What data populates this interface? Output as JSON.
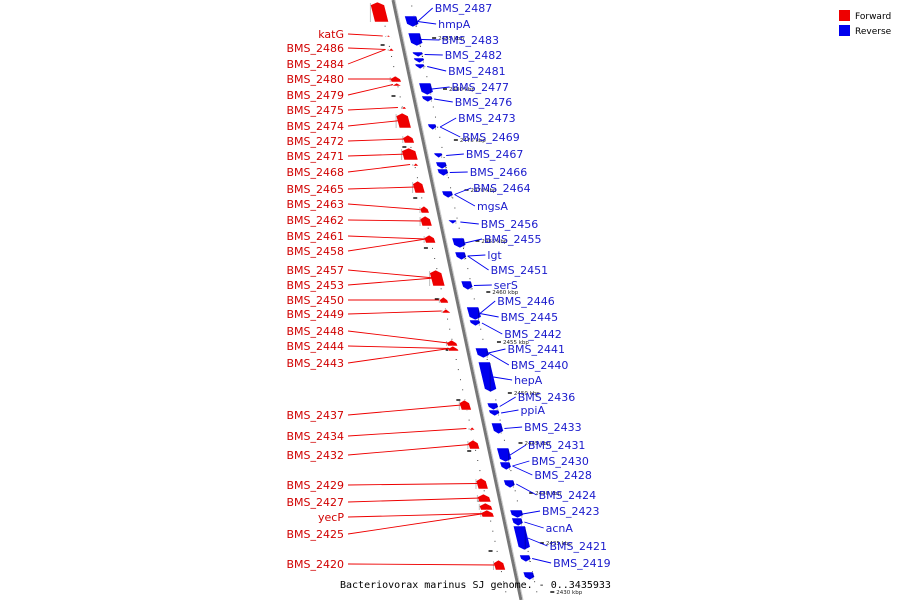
{
  "caption": "Bacteriovorax marinus SJ genome. - 0..3435933",
  "legend": [
    {
      "label": "Forward",
      "color": "#ee0000"
    },
    {
      "label": "Reverse",
      "color": "#0000ee"
    }
  ],
  "colors": {
    "forward": "#ee0000",
    "reverse": "#0000ee",
    "axis": "#8a8a8a"
  },
  "ticks": [
    "2485 kbp",
    "2480 kbp",
    "2475 kbp",
    "2470 kbp",
    "2465 kbp",
    "2460 kbp",
    "2455 kbp",
    "2450 kbp",
    "2445 kbp",
    "2440 kbp",
    "2435 kbp",
    "2430 kbp"
  ],
  "forward_genes": [
    "katG",
    "BMS_2486",
    "BMS_2484",
    "BMS_2480",
    "BMS_2479",
    "BMS_2475",
    "BMS_2474",
    "BMS_2472",
    "BMS_2471",
    "BMS_2468",
    "BMS_2465",
    "BMS_2463",
    "BMS_2462",
    "BMS_2461",
    "BMS_2458",
    "BMS_2457",
    "BMS_2453",
    "BMS_2450",
    "BMS_2449",
    "BMS_2448",
    "BMS_2444",
    "BMS_2443",
    "BMS_2437",
    "BMS_2434",
    "BMS_2432",
    "BMS_2429",
    "BMS_2427",
    "yecP",
    "BMS_2425",
    "BMS_2420"
  ],
  "reverse_genes": [
    "BMS_2487",
    "hmpA",
    "BMS_2483",
    "BMS_2482",
    "BMS_2481",
    "BMS_2477",
    "BMS_2476",
    "BMS_2473",
    "BMS_2469",
    "BMS_2467",
    "BMS_2466",
    "BMS_2464",
    "mgsA",
    "BMS_2456",
    "BMS_2455",
    "lgt",
    "BMS_2451",
    "serS",
    "BMS_2446",
    "BMS_2445",
    "BMS_2442",
    "BMS_2441",
    "BMS_2440",
    "hepA",
    "BMS_2436",
    "ppiA",
    "BMS_2433",
    "BMS_2431",
    "BMS_2430",
    "BMS_2428",
    "BMS_2424",
    "BMS_2423",
    "acnA",
    "BMS_2421",
    "BMS_2419"
  ]
}
